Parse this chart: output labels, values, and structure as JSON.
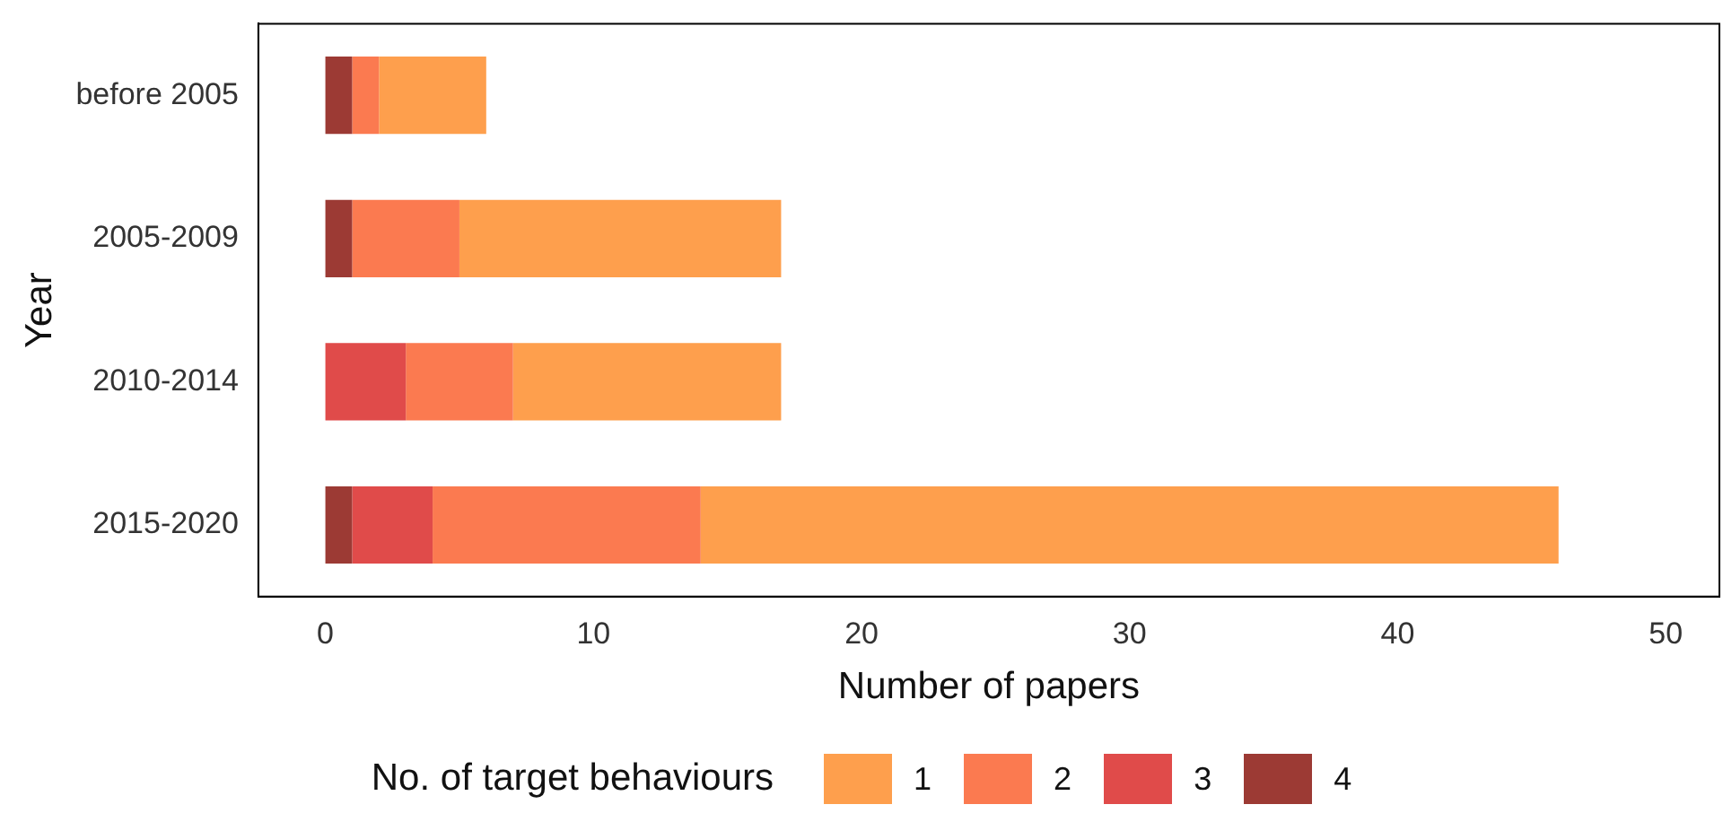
{
  "chart_data": {
    "type": "bar",
    "orientation": "horizontal",
    "stacked": true,
    "xlabel": "Number of papers",
    "ylabel": "Year",
    "legend_title": "No. of target behaviours",
    "legend": "bottom",
    "grid": false,
    "categories": [
      "before 2005",
      "2005-2009",
      "2010-2014",
      "2015-2020"
    ],
    "xlim": [
      -2.5,
      52
    ],
    "xticks": [
      0,
      10,
      20,
      30,
      40,
      50
    ],
    "series": [
      {
        "name": "4",
        "color": "#9c3a34",
        "values": [
          1,
          1,
          0,
          1
        ]
      },
      {
        "name": "3",
        "color": "#e04b4a",
        "values": [
          0,
          0,
          3,
          3
        ]
      },
      {
        "name": "2",
        "color": "#fb7a50",
        "values": [
          1,
          4,
          4,
          10
        ]
      },
      {
        "name": "1",
        "color": "#fe9f4d",
        "values": [
          4,
          12,
          10,
          32
        ]
      }
    ]
  }
}
